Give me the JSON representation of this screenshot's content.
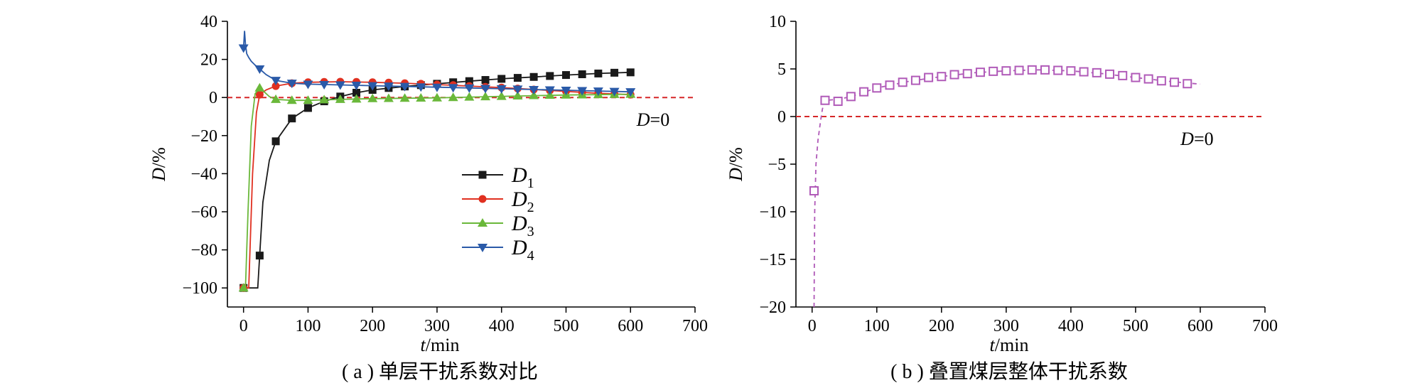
{
  "chart_data": [
    {
      "type": "line",
      "caption": "( a ) 单层干扰系数对比",
      "xlabel_var": "t",
      "xlabel_unit": "/min",
      "ylabel_var": "D",
      "ylabel_unit": "/%",
      "xlim": [
        -25,
        700
      ],
      "ylim": [
        -110,
        40
      ],
      "xticks": [
        0,
        100,
        200,
        300,
        400,
        500,
        600,
        700
      ],
      "yticks": [
        40,
        20,
        0,
        -20,
        -40,
        -60,
        -80,
        -100
      ],
      "reference": {
        "y": 0,
        "color": "#d62728",
        "label_var": "D",
        "label_rest": "=0"
      },
      "legend_position": "center",
      "series": [
        {
          "name": "D",
          "sub": "1",
          "color": "#1a1a1a",
          "marker": "square",
          "x": [
            0,
            25,
            50,
            75,
            100,
            125,
            150,
            175,
            200,
            225,
            250,
            275,
            300,
            325,
            350,
            375,
            400,
            425,
            450,
            475,
            500,
            525,
            550,
            575,
            600
          ],
          "y": [
            -100,
            -83,
            -23,
            -11,
            -5.5,
            -2,
            0.5,
            2.5,
            4,
            5,
            5.8,
            6.5,
            7.2,
            8,
            8.6,
            9.2,
            9.8,
            10.3,
            10.8,
            11.3,
            11.8,
            12.2,
            12.6,
            13,
            13.2
          ],
          "curve": [
            [
              0,
              -100
            ],
            [
              10,
              -100
            ],
            [
              22,
              -100
            ],
            [
              25,
              -83
            ],
            [
              30,
              -55
            ],
            [
              40,
              -33
            ],
            [
              50,
              -23
            ],
            [
              75,
              -11
            ],
            [
              100,
              -5.5
            ],
            [
              125,
              -2
            ],
            [
              150,
              0.5
            ],
            [
              175,
              2.5
            ],
            [
              200,
              4
            ],
            [
              250,
              5.8
            ],
            [
              300,
              7.2
            ],
            [
              350,
              8.6
            ],
            [
              400,
              9.8
            ],
            [
              450,
              10.8
            ],
            [
              500,
              11.8
            ],
            [
              550,
              12.6
            ],
            [
              600,
              13.2
            ]
          ]
        },
        {
          "name": "D",
          "sub": "2",
          "color": "#e03020",
          "marker": "circle",
          "x": [
            0,
            25,
            50,
            75,
            100,
            125,
            150,
            175,
            200,
            225,
            250,
            275,
            300,
            325,
            350,
            375,
            400,
            425,
            450,
            475,
            500,
            525,
            550,
            575,
            600
          ],
          "y": [
            -100,
            1.5,
            6,
            7.5,
            8,
            8.2,
            8.3,
            8.2,
            8,
            7.8,
            7.5,
            7.2,
            6.8,
            6.5,
            6,
            5.6,
            5.2,
            4.7,
            4.2,
            3.7,
            3.2,
            2.7,
            2.2,
            1.8,
            1.5
          ],
          "curve": [
            [
              0,
              -100
            ],
            [
              8,
              -100
            ],
            [
              14,
              -40
            ],
            [
              20,
              -8
            ],
            [
              25,
              1.5
            ],
            [
              35,
              4
            ],
            [
              50,
              6
            ],
            [
              75,
              7.5
            ],
            [
              100,
              8
            ],
            [
              150,
              8.3
            ],
            [
              200,
              8
            ],
            [
              250,
              7.5
            ],
            [
              300,
              6.8
            ],
            [
              350,
              6
            ],
            [
              400,
              5.2
            ],
            [
              450,
              4.2
            ],
            [
              500,
              3.2
            ],
            [
              550,
              2.2
            ],
            [
              600,
              1.5
            ]
          ]
        },
        {
          "name": "D",
          "sub": "3",
          "color": "#6ab83a",
          "marker": "triangle-up",
          "x": [
            0,
            25,
            50,
            75,
            100,
            125,
            150,
            175,
            200,
            225,
            250,
            275,
            300,
            325,
            350,
            375,
            400,
            425,
            450,
            475,
            500,
            525,
            550,
            575,
            600
          ],
          "y": [
            -100,
            5,
            -1,
            -1.5,
            -1.5,
            -1.2,
            -1,
            -0.8,
            -0.6,
            -0.5,
            -0.4,
            -0.3,
            -0.2,
            0,
            0.2,
            0.4,
            0.6,
            0.8,
            1,
            1.2,
            1.3,
            1.4,
            1.5,
            1.6,
            1.7
          ],
          "curve": [
            [
              0,
              -100
            ],
            [
              3,
              -100
            ],
            [
              7,
              -60
            ],
            [
              12,
              -15
            ],
            [
              18,
              2
            ],
            [
              25,
              5
            ],
            [
              32,
              3
            ],
            [
              40,
              0.5
            ],
            [
              50,
              -1
            ],
            [
              75,
              -1.5
            ],
            [
              100,
              -1.5
            ],
            [
              150,
              -1
            ],
            [
              200,
              -0.6
            ],
            [
              300,
              -0.2
            ],
            [
              400,
              0.6
            ],
            [
              500,
              1.3
            ],
            [
              600,
              1.7
            ]
          ]
        },
        {
          "name": "D",
          "sub": "4",
          "color": "#2a5aa8",
          "marker": "triangle-down",
          "x": [
            0,
            25,
            50,
            75,
            100,
            125,
            150,
            175,
            200,
            225,
            250,
            275,
            300,
            325,
            350,
            375,
            400,
            425,
            450,
            475,
            500,
            525,
            550,
            575,
            600
          ],
          "y": [
            26,
            15,
            9,
            7.5,
            7,
            6.8,
            6.6,
            6.4,
            6.2,
            6,
            5.8,
            5.6,
            5.4,
            5.2,
            5,
            4.8,
            4.6,
            4.4,
            4.2,
            4,
            3.8,
            3.6,
            3.4,
            3.2,
            3
          ],
          "curve": [
            [
              0,
              26
            ],
            [
              1.5,
              35
            ],
            [
              3,
              28
            ],
            [
              5,
              23
            ],
            [
              8,
              21
            ],
            [
              12,
              19
            ],
            [
              18,
              17
            ],
            [
              25,
              15
            ],
            [
              35,
              12
            ],
            [
              50,
              9
            ],
            [
              75,
              7.5
            ],
            [
              100,
              7
            ],
            [
              200,
              6.2
            ],
            [
              300,
              5.4
            ],
            [
              400,
              4.6
            ],
            [
              500,
              3.8
            ],
            [
              600,
              3
            ]
          ]
        }
      ]
    },
    {
      "type": "line",
      "caption": "( b ) 叠置煤层整体干扰系数",
      "xlabel_var": "t",
      "xlabel_unit": "/min",
      "ylabel_var": "D",
      "ylabel_unit": "/%",
      "xlim": [
        -25,
        700
      ],
      "ylim": [
        -20,
        10
      ],
      "xticks": [
        0,
        100,
        200,
        300,
        400,
        500,
        600,
        700
      ],
      "yticks": [
        10,
        5,
        0,
        -5,
        -10,
        -15,
        -20
      ],
      "reference": {
        "y": 0,
        "color": "#d62728",
        "label_var": "D",
        "label_rest": "=0"
      },
      "series": [
        {
          "name": "",
          "color": "#b05ab8",
          "marker": "open-square",
          "dashed": true,
          "x": [
            3,
            20,
            40,
            60,
            80,
            100,
            120,
            140,
            160,
            180,
            200,
            220,
            240,
            260,
            280,
            300,
            320,
            340,
            360,
            380,
            400,
            420,
            440,
            460,
            480,
            500,
            520,
            540,
            560,
            580
          ],
          "y": [
            -7.8,
            1.7,
            1.6,
            2.1,
            2.6,
            3.0,
            3.3,
            3.6,
            3.8,
            4.1,
            4.2,
            4.4,
            4.5,
            4.65,
            4.75,
            4.8,
            4.85,
            4.9,
            4.9,
            4.85,
            4.8,
            4.7,
            4.6,
            4.45,
            4.3,
            4.1,
            3.95,
            3.75,
            3.6,
            3.45
          ],
          "curve": [
            [
              3,
              -20
            ],
            [
              4,
              -10
            ],
            [
              6,
              -5
            ],
            [
              9,
              -2.5
            ],
            [
              13,
              -0.5
            ],
            [
              16,
              0.8
            ],
            [
              20,
              1.7
            ],
            [
              40,
              1.8
            ],
            [
              60,
              2.1
            ],
            [
              100,
              3
            ],
            [
              150,
              3.7
            ],
            [
              200,
              4.2
            ],
            [
              250,
              4.6
            ],
            [
              300,
              4.8
            ],
            [
              350,
              4.9
            ],
            [
              400,
              4.8
            ],
            [
              450,
              4.5
            ],
            [
              500,
              4.1
            ],
            [
              550,
              3.7
            ],
            [
              600,
              3.4
            ]
          ]
        }
      ]
    }
  ]
}
